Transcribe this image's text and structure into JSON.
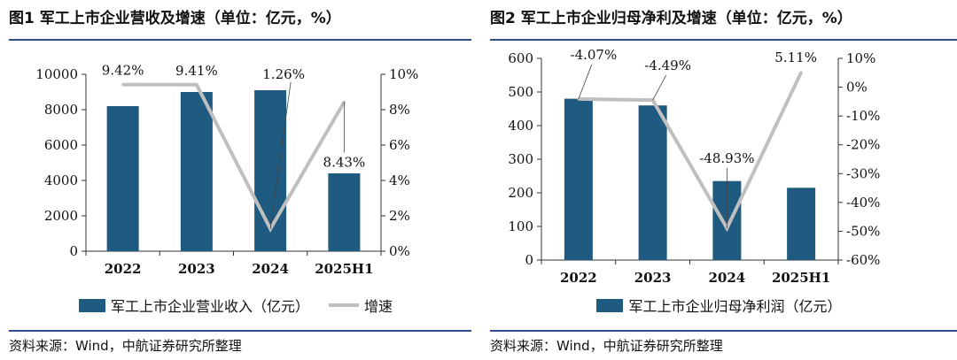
{
  "charts": {
    "left": {
      "figure_title": "图1 军工上市企业营收及增速（单位：亿元，%）",
      "source": "资料来源：Wind，中航证券研究所整理",
      "legend": {
        "bar_label": "军工上市企业营业收入（亿元）",
        "line_label": "增速"
      },
      "colors": {
        "bar": "#1f5a80",
        "line": "#bfbfbf"
      }
    },
    "right": {
      "figure_title": "图2 军工上市企业归母净利及增速（单位：亿元，%）",
      "source": "资料来源：Wind，中航证券研究所整理",
      "legend": {
        "bar_label": "军工上市企业归母净利润（亿元）"
      },
      "colors": {
        "bar": "#1f5a80",
        "line": "#bfbfbf"
      }
    }
  },
  "chart_data": [
    {
      "type": "bar",
      "title": "图1 军工上市企业营收及增速（单位：亿元，%）",
      "categories": [
        "2022",
        "2023",
        "2024",
        "2025H1"
      ],
      "series": [
        {
          "name": "军工上市企业营业收入（亿元）",
          "type": "bar",
          "axis": "left",
          "values": [
            8200,
            9000,
            9100,
            4400
          ]
        },
        {
          "name": "增速",
          "type": "line",
          "axis": "right",
          "values": [
            9.42,
            9.41,
            1.26,
            8.43
          ]
        }
      ],
      "data_labels": [
        "9.42%",
        "9.41%",
        "1.26%",
        "8.43%"
      ],
      "ylim_left": [
        0,
        10000
      ],
      "yticks_left": [
        "0",
        "2000",
        "4000",
        "6000",
        "8000",
        "10000"
      ],
      "ylim_right": [
        0,
        10
      ],
      "yticks_right": [
        "0%",
        "2%",
        "4%",
        "6%",
        "8%",
        "10%"
      ],
      "grid": false,
      "legend_position": "bottom"
    },
    {
      "type": "bar",
      "title": "图2 军工上市企业归母净利及增速（单位：亿元，%）",
      "categories": [
        "2022",
        "2023",
        "2024",
        "2025H1"
      ],
      "series": [
        {
          "name": "军工上市企业归母净利润（亿元）",
          "type": "bar",
          "axis": "left",
          "values": [
            480,
            460,
            235,
            215
          ]
        },
        {
          "type": "line",
          "axis": "right",
          "values": [
            -4.07,
            -4.49,
            -48.93,
            5.11
          ]
        }
      ],
      "data_labels": [
        "-4.07%",
        "-4.49%",
        "-48.93%",
        "5.11%"
      ],
      "ylim_left": [
        0,
        600
      ],
      "yticks_left": [
        "0",
        "100",
        "200",
        "300",
        "400",
        "500",
        "600"
      ],
      "ylim_right": [
        -60,
        10
      ],
      "yticks_right": [
        "-60%",
        "-50%",
        "-40%",
        "-30%",
        "-20%",
        "-10%",
        "0%",
        "10%"
      ],
      "grid": false,
      "legend_position": "bottom"
    }
  ]
}
